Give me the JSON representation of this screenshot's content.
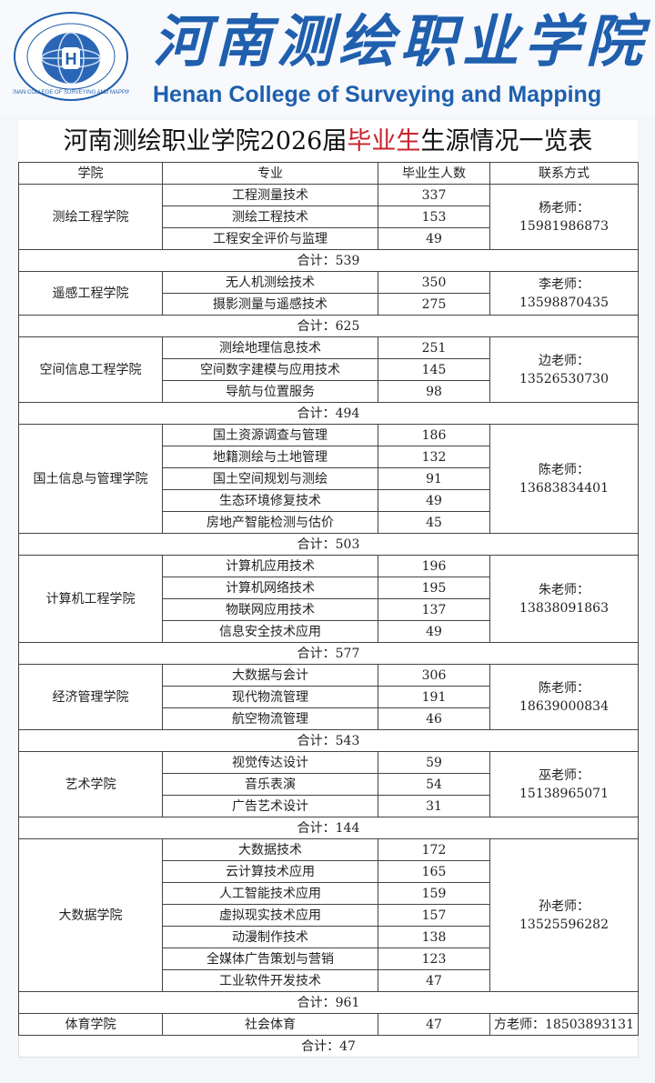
{
  "header": {
    "logo_text": "河南测绘职业学院 HENAN COLLEGE OF SURVEYING AND MAPPING",
    "cn_name": "河南测绘职业学院",
    "en_name": "Henan College of Surveying and Mapping",
    "brand_color": "#1f5fae"
  },
  "title": {
    "part1": "河南测绘职业学院2026届",
    "highlight": "毕业生",
    "part2": "生源情况一览表",
    "highlight_color": "#c8232c"
  },
  "columns": [
    "学院",
    "专业",
    "毕业生人数",
    "联系方式"
  ],
  "colleges": [
    {
      "name": "测绘工程学院",
      "contact_name": "杨老师：",
      "phone": "15981986873",
      "total": "合计：539",
      "majors": [
        [
          "工程测量技术",
          "337"
        ],
        [
          "测绘工程技术",
          "153"
        ],
        [
          "工程安全评价与监理",
          "49"
        ]
      ]
    },
    {
      "name": "遥感工程学院",
      "contact_name": "李老师：",
      "phone": "13598870435",
      "total": "合计：625",
      "majors": [
        [
          "无人机测绘技术",
          "350"
        ],
        [
          "摄影测量与遥感技术",
          "275"
        ]
      ]
    },
    {
      "name": "空间信息工程学院",
      "contact_name": "边老师：",
      "phone": "13526530730",
      "total": "合计：494",
      "majors": [
        [
          "测绘地理信息技术",
          "251"
        ],
        [
          "空间数字建模与应用技术",
          "145"
        ],
        [
          "导航与位置服务",
          "98"
        ]
      ]
    },
    {
      "name": "国土信息与管理学院",
      "contact_name": "陈老师：",
      "phone": "13683834401",
      "total": "合计：503",
      "majors": [
        [
          "国土资源调查与管理",
          "186"
        ],
        [
          "地籍测绘与土地管理",
          "132"
        ],
        [
          "国土空间规划与测绘",
          "91"
        ],
        [
          "生态环境修复技术",
          "49"
        ],
        [
          "房地产智能检测与估价",
          "45"
        ]
      ]
    },
    {
      "name": "计算机工程学院",
      "contact_name": "朱老师：",
      "phone": "13838091863",
      "total": "合计：577",
      "majors": [
        [
          "计算机应用技术",
          "196"
        ],
        [
          "计算机网络技术",
          "195"
        ],
        [
          "物联网应用技术",
          "137"
        ],
        [
          "信息安全技术应用",
          "49"
        ]
      ]
    },
    {
      "name": "经济管理学院",
      "contact_name": "陈老师：",
      "phone": "18639000834",
      "total": "合计：543",
      "majors": [
        [
          "大数据与会计",
          "306"
        ],
        [
          "现代物流管理",
          "191"
        ],
        [
          "航空物流管理",
          "46"
        ]
      ]
    },
    {
      "name": "艺术学院",
      "contact_name": "巫老师：",
      "phone": "15138965071",
      "total": "合计：144",
      "majors": [
        [
          "视觉传达设计",
          "59"
        ],
        [
          "音乐表演",
          "54"
        ],
        [
          "广告艺术设计",
          "31"
        ]
      ]
    },
    {
      "name": "大数据学院",
      "contact_name": "孙老师：",
      "phone": "13525596282",
      "total": "合计：961",
      "majors": [
        [
          "大数据技术",
          "172"
        ],
        [
          "云计算技术应用",
          "165"
        ],
        [
          "人工智能技术应用",
          "159"
        ],
        [
          "虚拟现实技术应用",
          "157"
        ],
        [
          "动漫制作技术",
          "138"
        ],
        [
          "全媒体广告策划与营销",
          "123"
        ],
        [
          "工业软件开发技术",
          "47"
        ]
      ]
    },
    {
      "name": "体育学院",
      "contact_name": "方老师：",
      "phone": "18503893131",
      "total": "合计：47",
      "single_line_contact": true,
      "majors": [
        [
          "社会体育",
          "47"
        ]
      ]
    }
  ]
}
